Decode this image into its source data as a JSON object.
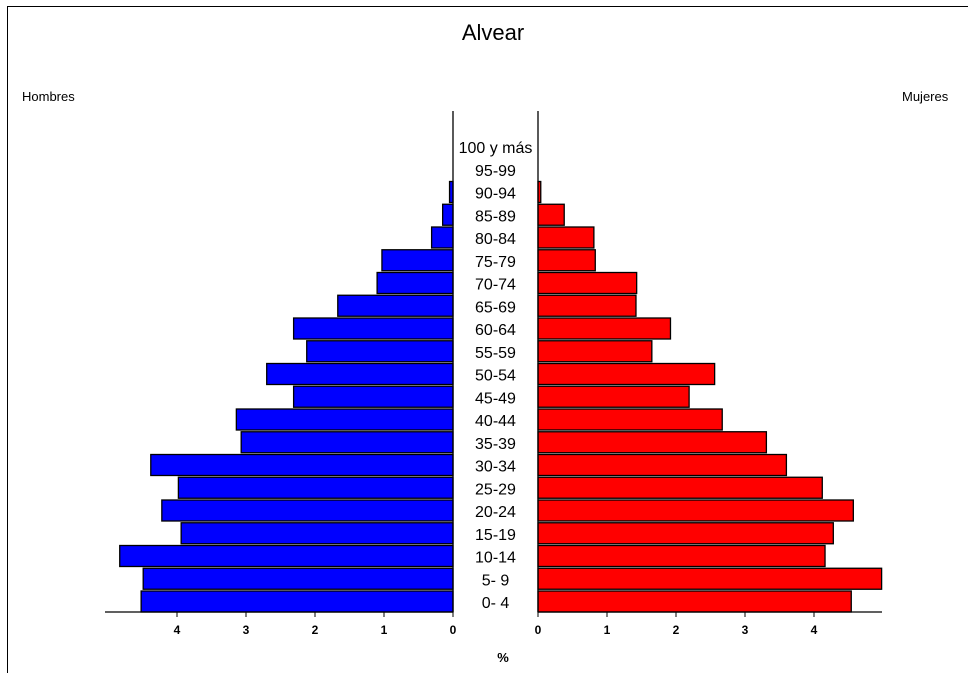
{
  "chart_data": {
    "type": "bar",
    "subtype": "population-pyramid",
    "title": "Alvear",
    "left_label": "Hombres",
    "right_label": "Mujeres",
    "unit_label": "%",
    "categories": [
      "0- 4",
      "5- 9",
      "10-14",
      "15-19",
      "20-24",
      "25-29",
      "30-34",
      "35-39",
      "40-44",
      "45-49",
      "50-54",
      "55-59",
      "60-64",
      "65-69",
      "70-74",
      "75-79",
      "80-84",
      "85-89",
      "90-94",
      "95-99",
      "100 y más"
    ],
    "series": [
      {
        "name": "Hombres",
        "color": "#0000ff",
        "values": [
          4.52,
          4.49,
          4.83,
          3.94,
          4.22,
          3.98,
          4.38,
          3.07,
          3.14,
          2.31,
          2.7,
          2.12,
          2.31,
          1.67,
          1.1,
          1.03,
          0.31,
          0.15,
          0.05,
          0.0,
          0.0
        ]
      },
      {
        "name": "Mujeres",
        "color": "#ff0000",
        "values": [
          4.54,
          4.98,
          4.16,
          4.28,
          4.57,
          4.12,
          3.6,
          3.31,
          2.67,
          2.19,
          2.56,
          1.65,
          1.92,
          1.42,
          1.43,
          0.83,
          0.81,
          0.38,
          0.04,
          0.0,
          0.0
        ]
      }
    ],
    "xlim_left": [
      0,
      5
    ],
    "xlim_right": [
      0,
      5
    ],
    "xticks_left": [
      4,
      3,
      2,
      1,
      0
    ],
    "xticks_right": [
      0,
      1,
      2,
      3,
      4
    ],
    "bar_colors": {
      "left": "#0000ff",
      "right": "#ff0000"
    }
  }
}
